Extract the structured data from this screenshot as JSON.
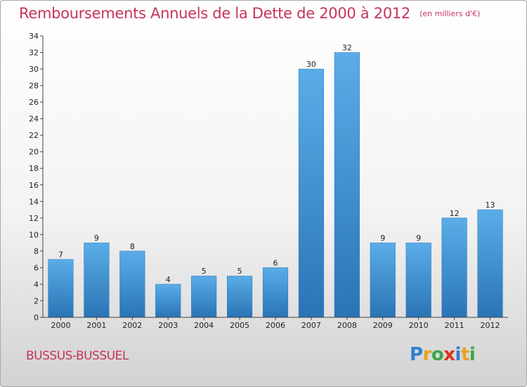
{
  "header": {
    "title": "Remboursements Annuels de la Dette de 2000 à 2012",
    "subtitle": "(en milliers d'€)"
  },
  "footer": {
    "commune": "BUSSUS-BUSSUEL",
    "logo_text": "Proxiti",
    "logo_colors": [
      "#2e7fd0",
      "#e8a020",
      "#3aa84a",
      "#e0301e",
      "#2e7fd0",
      "#e8a020",
      "#3aa84a"
    ]
  },
  "chart_data": {
    "type": "bar",
    "title": "Remboursements Annuels de la Dette de 2000 à 2012",
    "subtitle": "(en milliers d'€)",
    "xlabel": "",
    "ylabel": "",
    "categories": [
      "2000",
      "2001",
      "2002",
      "2003",
      "2004",
      "2005",
      "2006",
      "2007",
      "2008",
      "2009",
      "2010",
      "2011",
      "2012"
    ],
    "values": [
      7,
      9,
      8,
      4,
      5,
      5,
      6,
      30,
      32,
      9,
      9,
      12,
      13
    ],
    "ylim": [
      0,
      34
    ],
    "yticks": [
      0,
      2,
      4,
      6,
      8,
      10,
      12,
      14,
      16,
      18,
      20,
      22,
      24,
      26,
      28,
      30,
      32,
      34
    ],
    "grid": false,
    "legend": "none",
    "bar_color": "#3d93d8",
    "bar_color_light": "#5aade8",
    "bar_color_dark": "#2a74b5"
  }
}
